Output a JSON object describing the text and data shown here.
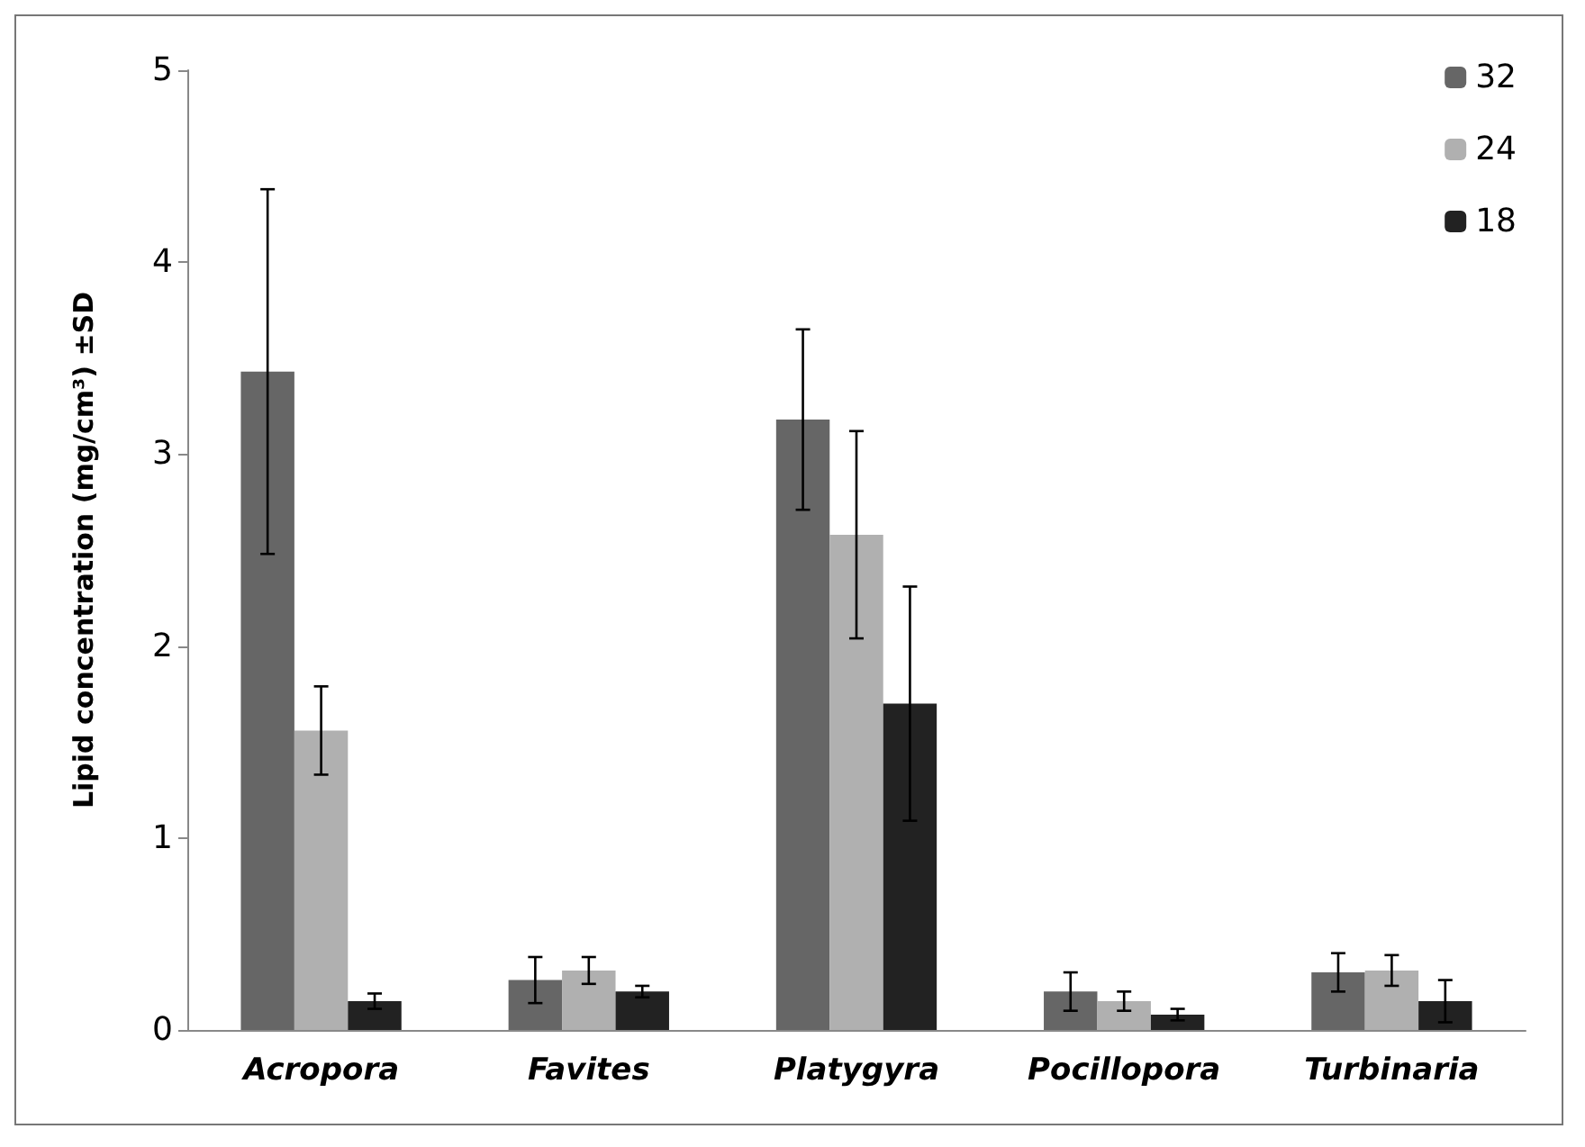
{
  "chart_data": {
    "type": "bar",
    "ylabel": "Lipid concentration (mg/cm³) ±SD",
    "categories": [
      "Acropora",
      "Favites",
      "Platygyra",
      "Pocillopora",
      "Turbinaria"
    ],
    "series": [
      {
        "name": "32",
        "color": "#666666",
        "values": [
          3.43,
          0.26,
          3.18,
          0.2,
          0.3
        ],
        "errors": [
          0.95,
          0.12,
          0.47,
          0.1,
          0.1
        ]
      },
      {
        "name": "24",
        "color": "#b0b0b0",
        "values": [
          1.56,
          0.31,
          2.58,
          0.15,
          0.31
        ],
        "errors": [
          0.23,
          0.07,
          0.54,
          0.05,
          0.08
        ]
      },
      {
        "name": "18",
        "color": "#222222",
        "values": [
          0.15,
          0.2,
          1.7,
          0.08,
          0.15
        ],
        "errors": [
          0.04,
          0.03,
          0.61,
          0.03,
          0.11
        ]
      }
    ],
    "ylim": [
      0,
      5
    ],
    "yticks": [
      0,
      1,
      2,
      3,
      4,
      5
    ],
    "grid": false,
    "legend": "top right"
  }
}
